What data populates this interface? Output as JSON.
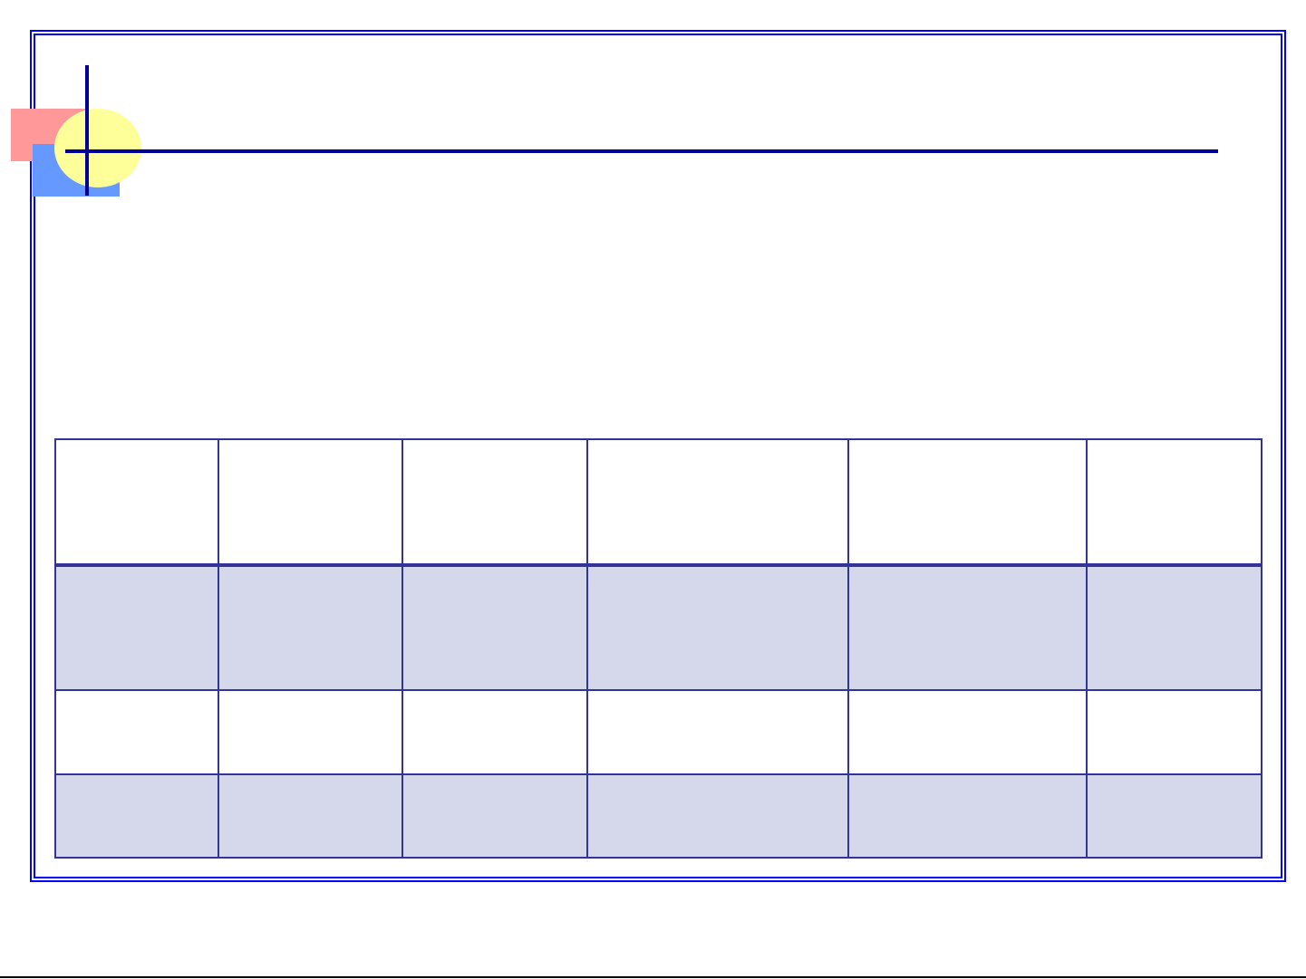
{
  "slide": {
    "colors": {
      "frame": "#0000ff",
      "accent_lines": "#000099",
      "deco_pink": "#ff9999",
      "deco_blue": "#6699ff",
      "deco_yellow": "#ffff99",
      "table_border": "#333399",
      "table_band": "#d5d7ea"
    },
    "title": "",
    "table": {
      "rows": [
        [
          "",
          "",
          "",
          "",
          "",
          ""
        ],
        [
          "",
          "",
          "",
          "",
          "",
          ""
        ],
        [
          "",
          "",
          "",
          "",
          "",
          ""
        ],
        [
          "",
          "",
          "",
          "",
          "",
          ""
        ]
      ]
    }
  }
}
